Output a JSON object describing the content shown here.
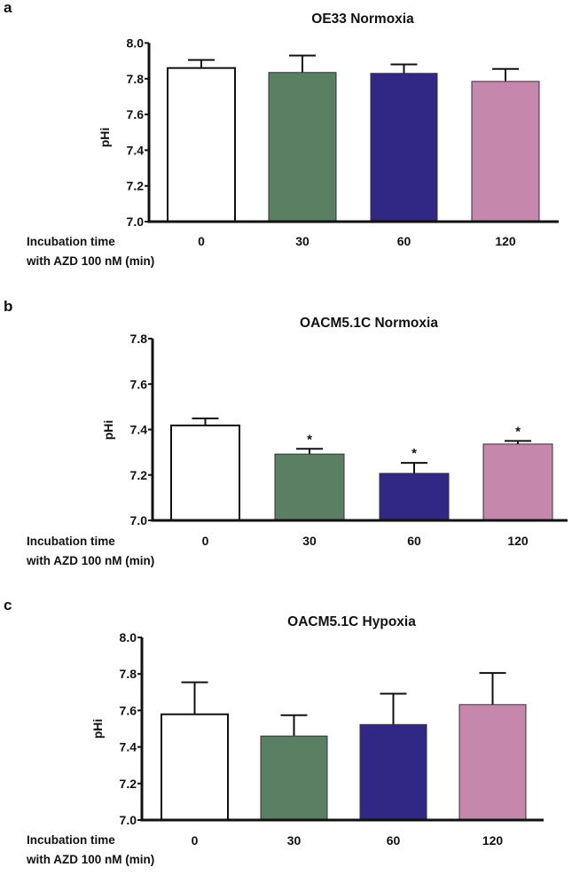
{
  "chart_data": [
    {
      "panel": "a",
      "type": "bar",
      "title": "OE33 Normoxia",
      "ylabel": "pHi",
      "xlabel_lines": [
        "Incubation time",
        "with AZD 100 nM (min)"
      ],
      "categories": [
        "0",
        "30",
        "60",
        "120"
      ],
      "values": [
        7.86,
        7.835,
        7.83,
        7.785
      ],
      "error_upper": [
        7.905,
        7.93,
        7.88,
        7.855
      ],
      "significance": [
        "",
        "",
        "",
        ""
      ],
      "ylim": [
        7.0,
        8.0
      ],
      "yticks": [
        "7.0",
        "7.2",
        "7.4",
        "7.6",
        "7.8",
        "8.0"
      ]
    },
    {
      "panel": "b",
      "type": "bar",
      "title": "OACM5.1C Normoxia",
      "ylabel": "pHi",
      "xlabel_lines": [
        "Incubation time",
        "with AZD 100 nM (min)"
      ],
      "categories": [
        "0",
        "30",
        "60",
        "120"
      ],
      "values": [
        7.418,
        7.292,
        7.207,
        7.336
      ],
      "error_upper": [
        7.449,
        7.315,
        7.253,
        7.35
      ],
      "significance": [
        "",
        "*",
        "*",
        "*"
      ],
      "ylim": [
        7.0,
        7.8
      ],
      "yticks": [
        "7.0",
        "7.2",
        "7.4",
        "7.6",
        "7.8"
      ]
    },
    {
      "panel": "c",
      "type": "bar",
      "title": "OACM5.1C Hypoxia",
      "ylabel": "pHi",
      "xlabel_lines": [
        "Incubation time",
        "with AZD 100 nM (min)"
      ],
      "categories": [
        "0",
        "30",
        "60",
        "120"
      ],
      "values": [
        7.579,
        7.46,
        7.523,
        7.632
      ],
      "error_upper": [
        7.754,
        7.574,
        7.692,
        7.805
      ],
      "significance": [
        "",
        "",
        "",
        ""
      ],
      "ylim": [
        7.0,
        8.0
      ],
      "yticks": [
        "7.0",
        "7.2",
        "7.4",
        "7.6",
        "7.8",
        "8.0"
      ]
    }
  ],
  "colors": {
    "bars": [
      "#ffffff",
      "#5a7f62",
      "#312784",
      "#c587ab"
    ],
    "axis": "#111111"
  }
}
